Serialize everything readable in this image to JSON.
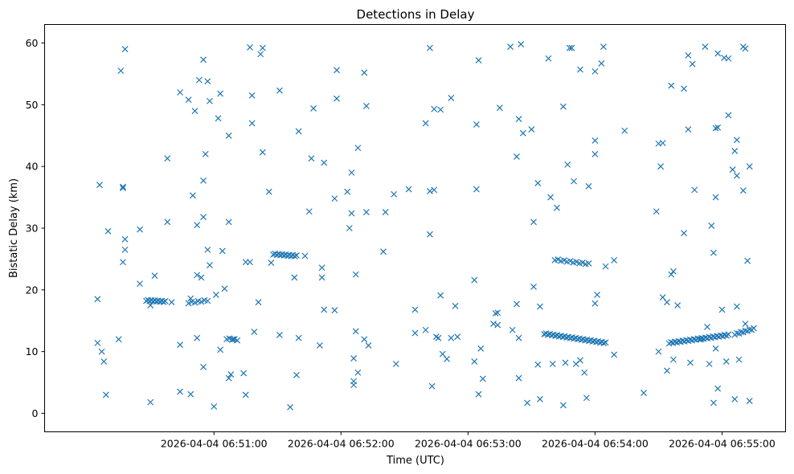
{
  "chart_data": {
    "type": "scatter",
    "title": "Detections in Delay",
    "xlabel": "Time (UTC)",
    "ylabel": "Bistatic Delay (km)",
    "marker": "x",
    "color": "#1f77b4",
    "x_unit": "seconds since 2026-04-04 06:50:00",
    "xlim": [
      -20,
      330
    ],
    "ylim": [
      -3,
      63
    ],
    "x_ticks": [
      {
        "value": 60,
        "label": "2026-04-04 06:51:00"
      },
      {
        "value": 120,
        "label": "2026-04-04 06:52:00"
      },
      {
        "value": 180,
        "label": "2026-04-04 06:53:00"
      },
      {
        "value": 240,
        "label": "2026-04-04 06:54:00"
      },
      {
        "value": 300,
        "label": "2026-04-04 06:55:00"
      }
    ],
    "y_ticks": [
      {
        "value": 0,
        "label": "0"
      },
      {
        "value": 10,
        "label": "10"
      },
      {
        "value": 20,
        "label": "20"
      },
      {
        "value": 30,
        "label": "30"
      },
      {
        "value": 40,
        "label": "40"
      },
      {
        "value": 50,
        "label": "50"
      },
      {
        "value": 60,
        "label": "60"
      }
    ],
    "tracks": [
      {
        "t_start": 28,
        "t_end": 37,
        "d_start": 18.3,
        "d_end": 18.1,
        "n": 12
      },
      {
        "t_start": 48,
        "t_end": 57,
        "d_start": 17.9,
        "d_end": 18.3,
        "n": 7
      },
      {
        "t_start": 66,
        "t_end": 71,
        "d_start": 12.1,
        "d_end": 11.9,
        "n": 5
      },
      {
        "t_start": 88,
        "t_end": 99,
        "d_start": 25.8,
        "d_end": 25.5,
        "n": 14
      },
      {
        "t_start": 216,
        "t_end": 245,
        "d_start": 12.9,
        "d_end": 11.4,
        "n": 34
      },
      {
        "t_start": 221,
        "t_end": 237,
        "d_start": 24.9,
        "d_end": 24.2,
        "n": 12
      },
      {
        "t_start": 275,
        "t_end": 303,
        "d_start": 11.4,
        "d_end": 12.7,
        "n": 32
      },
      {
        "t_start": 306,
        "t_end": 315,
        "d_start": 12.8,
        "d_end": 13.7,
        "n": 10
      }
    ],
    "scatter_points": [
      [
        5,
        11.4
      ],
      [
        7,
        10
      ],
      [
        8,
        8.4
      ],
      [
        9,
        3
      ],
      [
        10,
        29.5
      ],
      [
        15,
        12
      ],
      [
        16,
        55.5
      ],
      [
        17,
        36.5
      ],
      [
        18,
        59
      ],
      [
        17,
        24.5
      ],
      [
        18,
        28.2
      ],
      [
        18,
        26.5
      ],
      [
        17,
        36.7
      ],
      [
        6,
        37
      ],
      [
        5,
        18.5
      ],
      [
        25,
        21
      ],
      [
        30,
        17.5
      ],
      [
        32,
        22.3
      ],
      [
        25,
        29.8
      ],
      [
        30,
        1.8
      ],
      [
        38,
        41.3
      ],
      [
        38,
        31
      ],
      [
        40,
        18
      ],
      [
        44,
        52
      ],
      [
        44,
        3.5
      ],
      [
        44,
        11.1
      ],
      [
        48,
        50.8
      ],
      [
        49,
        3.1
      ],
      [
        49,
        18.6
      ],
      [
        50,
        35.3
      ],
      [
        51,
        49
      ],
      [
        52,
        22.4
      ],
      [
        52,
        12.2
      ],
      [
        53,
        54
      ],
      [
        52,
        30.5
      ],
      [
        54,
        22
      ],
      [
        55,
        57.3
      ],
      [
        55,
        31.8
      ],
      [
        55,
        37.7
      ],
      [
        55,
        7.5
      ],
      [
        56,
        42
      ],
      [
        57,
        53.8
      ],
      [
        57,
        26.5
      ],
      [
        58,
        50.6
      ],
      [
        58,
        24
      ],
      [
        60,
        1.1
      ],
      [
        61,
        19.2
      ],
      [
        62,
        47.8
      ],
      [
        63,
        10.3
      ],
      [
        63,
        51.8
      ],
      [
        64,
        26.3
      ],
      [
        65,
        20.2
      ],
      [
        67,
        31
      ],
      [
        67,
        45
      ],
      [
        67,
        5.7
      ],
      [
        68,
        6.3
      ],
      [
        69,
        12
      ],
      [
        74,
        6.5
      ],
      [
        75,
        24.5
      ],
      [
        75,
        3
      ],
      [
        77,
        24.5
      ],
      [
        77,
        59.3
      ],
      [
        78,
        51.5
      ],
      [
        78,
        47
      ],
      [
        79,
        13.2
      ],
      [
        81,
        18
      ],
      [
        82,
        58.2
      ],
      [
        83,
        59.2
      ],
      [
        83,
        42.3
      ],
      [
        86,
        35.9
      ],
      [
        87,
        24.4
      ],
      [
        91,
        52.3
      ],
      [
        91,
        12.7
      ],
      [
        96,
        1
      ],
      [
        98,
        22
      ],
      [
        99,
        6.2
      ],
      [
        100,
        45.7
      ],
      [
        100,
        12.2
      ],
      [
        103,
        25.5
      ],
      [
        105,
        32.7
      ],
      [
        106,
        41.3
      ],
      [
        107,
        49.4
      ],
      [
        111,
        23.6
      ],
      [
        110,
        11
      ],
      [
        111,
        22
      ],
      [
        112,
        40.6
      ],
      [
        112,
        16.8
      ],
      [
        117,
        16.7
      ],
      [
        117,
        34.8
      ],
      [
        118,
        55.6
      ],
      [
        118,
        51
      ],
      [
        123,
        35.9
      ],
      [
        125,
        39
      ],
      [
        124,
        30
      ],
      [
        125,
        32.4
      ],
      [
        126,
        4.6
      ],
      [
        126,
        5.2
      ],
      [
        126,
        8.9
      ],
      [
        127,
        13.3
      ],
      [
        127,
        22.5
      ],
      [
        128,
        6.6
      ],
      [
        128,
        43
      ],
      [
        131,
        55.2
      ],
      [
        132,
        32.6
      ],
      [
        132,
        49.8
      ],
      [
        131,
        12
      ],
      [
        133,
        11
      ],
      [
        140,
        26.2
      ],
      [
        141,
        32.6
      ],
      [
        145,
        35.5
      ],
      [
        146,
        8
      ],
      [
        152,
        36.3
      ],
      [
        155,
        13
      ],
      [
        155,
        16.8
      ],
      [
        160,
        47
      ],
      [
        160,
        13.5
      ],
      [
        162,
        29
      ],
      [
        162,
        36
      ],
      [
        162,
        59.2
      ],
      [
        163,
        4.4
      ],
      [
        164,
        36.2
      ],
      [
        164,
        49.3
      ],
      [
        165,
        12.4
      ],
      [
        166,
        12.2
      ],
      [
        167,
        49.2
      ],
      [
        167,
        19.1
      ],
      [
        168,
        9.6
      ],
      [
        170,
        8.8
      ],
      [
        172,
        51.1
      ],
      [
        172,
        12.2
      ],
      [
        174,
        17.4
      ],
      [
        175,
        12.4
      ],
      [
        183,
        8.4
      ],
      [
        183,
        21.6
      ],
      [
        184,
        36.3
      ],
      [
        184,
        46.8
      ],
      [
        185,
        57.2
      ],
      [
        185,
        3.1
      ],
      [
        186,
        10.5
      ],
      [
        187,
        5.6
      ],
      [
        192,
        14.5
      ],
      [
        193,
        16.2
      ],
      [
        194,
        16.3
      ],
      [
        194,
        14.3
      ],
      [
        195,
        49.5
      ],
      [
        200,
        59.4
      ],
      [
        201,
        13.5
      ],
      [
        203,
        17.7
      ],
      [
        203,
        41.6
      ],
      [
        204,
        47.7
      ],
      [
        204,
        12.2
      ],
      [
        204,
        5.7
      ],
      [
        205,
        59.8
      ],
      [
        206,
        45.4
      ],
      [
        208,
        1.7
      ],
      [
        210,
        46
      ],
      [
        211,
        31
      ],
      [
        211,
        20.5
      ],
      [
        213,
        37.3
      ],
      [
        213,
        7.9
      ],
      [
        214,
        17.3
      ],
      [
        214,
        2.3
      ],
      [
        218,
        57.5
      ],
      [
        219,
        35
      ],
      [
        220,
        8
      ],
      [
        222,
        33.3
      ],
      [
        225,
        1.3
      ],
      [
        225,
        49.7
      ],
      [
        226,
        8.2
      ],
      [
        227,
        40.3
      ],
      [
        228,
        59.2
      ],
      [
        229,
        59.2
      ],
      [
        230,
        37.6
      ],
      [
        231,
        8
      ],
      [
        233,
        55.7
      ],
      [
        233,
        8.6
      ],
      [
        235,
        6.6
      ],
      [
        236,
        2.5
      ],
      [
        237,
        36.8
      ],
      [
        240,
        55.4
      ],
      [
        240,
        44.2
      ],
      [
        240,
        42
      ],
      [
        240,
        17.8
      ],
      [
        241,
        19.2
      ],
      [
        243,
        56.7
      ],
      [
        244,
        59.4
      ],
      [
        245,
        23.8
      ],
      [
        249,
        24.8
      ],
      [
        249,
        9.5
      ],
      [
        254,
        45.8
      ],
      [
        263,
        3.3
      ],
      [
        269,
        32.7
      ],
      [
        270,
        43.7
      ],
      [
        270,
        10
      ],
      [
        271,
        40
      ],
      [
        272,
        18.8
      ],
      [
        272,
        43.8
      ],
      [
        274,
        18
      ],
      [
        274,
        6.9
      ],
      [
        276,
        22.5
      ],
      [
        276,
        53.1
      ],
      [
        277,
        8.7
      ],
      [
        277,
        23
      ],
      [
        279,
        17.5
      ],
      [
        282,
        52.6
      ],
      [
        282,
        29.2
      ],
      [
        284,
        46
      ],
      [
        284,
        58
      ],
      [
        285,
        8.2
      ],
      [
        286,
        56.6
      ],
      [
        287,
        36.2
      ],
      [
        290,
        12
      ],
      [
        292,
        59.4
      ],
      [
        293,
        14
      ],
      [
        294,
        8
      ],
      [
        295,
        30.4
      ],
      [
        296,
        26
      ],
      [
        296,
        1.7
      ],
      [
        297,
        35
      ],
      [
        297,
        46.2
      ],
      [
        297,
        10.5
      ],
      [
        298,
        46.3
      ],
      [
        298,
        4
      ],
      [
        298,
        58.3
      ],
      [
        300,
        16.8
      ],
      [
        301,
        57.6
      ],
      [
        302,
        8.4
      ],
      [
        303,
        57.5
      ],
      [
        303,
        48.3
      ],
      [
        305,
        39.5
      ],
      [
        306,
        42.5
      ],
      [
        307,
        38.5
      ],
      [
        307,
        44.3
      ],
      [
        307,
        17.3
      ],
      [
        308,
        8.7
      ],
      [
        306,
        2.3
      ],
      [
        310,
        36.1
      ],
      [
        310,
        59.4
      ],
      [
        311,
        59.1
      ],
      [
        311,
        14.5
      ],
      [
        312,
        24.7
      ],
      [
        313,
        2
      ],
      [
        313,
        40
      ]
    ]
  }
}
